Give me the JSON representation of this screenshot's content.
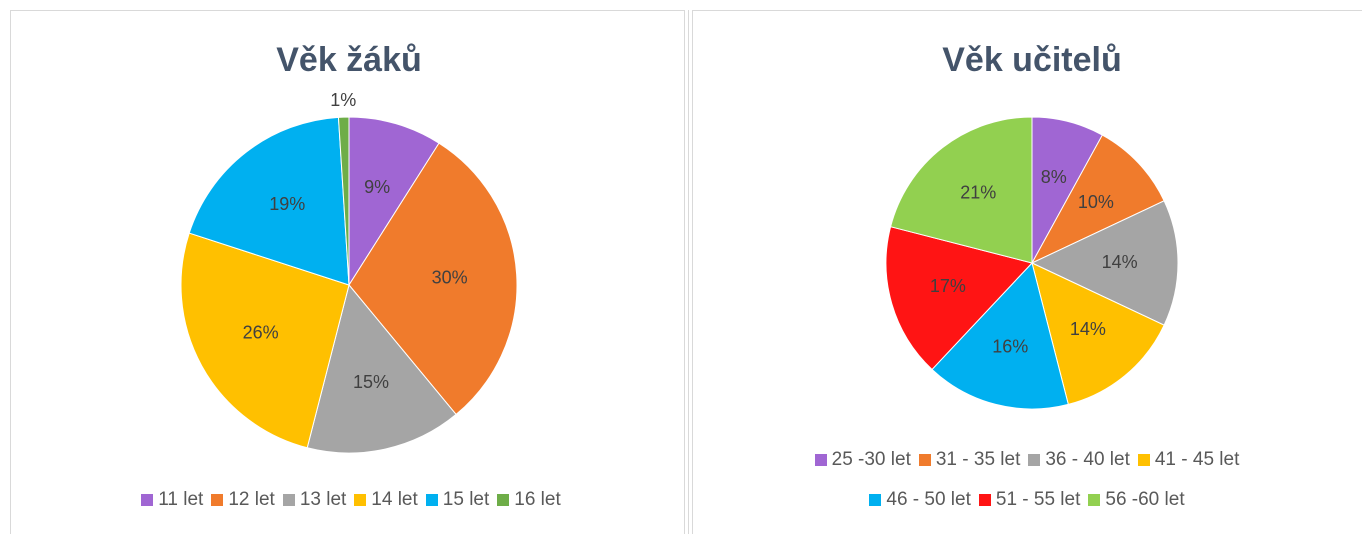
{
  "chart_data": [
    {
      "type": "pie",
      "title": "Věk žáků",
      "categories": [
        "11 let",
        "12 let",
        "13 let",
        "14 let",
        "15 let",
        "16 let"
      ],
      "values": [
        9,
        30,
        15,
        26,
        19,
        1
      ],
      "value_labels": [
        "9%",
        "30%",
        "15%",
        "26%",
        "19%",
        "1%"
      ],
      "colors": [
        "#a066d3",
        "#f07b2c",
        "#a5a5a5",
        "#ffc000",
        "#00b0f0",
        "#6ead48"
      ]
    },
    {
      "type": "pie",
      "title": "Věk učitelů",
      "categories": [
        "25 -30 let",
        "31 - 35 let",
        "36 - 40 let",
        "41 - 45 let",
        "46 - 50 let",
        "51 - 55 let",
        "56 -60 let"
      ],
      "values": [
        8,
        10,
        14,
        14,
        16,
        17,
        21
      ],
      "value_labels": [
        "8%",
        "10%",
        "14%",
        "14%",
        "16%",
        "17%",
        "21%"
      ],
      "colors": [
        "#a066d3",
        "#f07b2c",
        "#a5a5a5",
        "#ffc000",
        "#00b0f0",
        "#ff1414",
        "#92d050"
      ]
    }
  ]
}
